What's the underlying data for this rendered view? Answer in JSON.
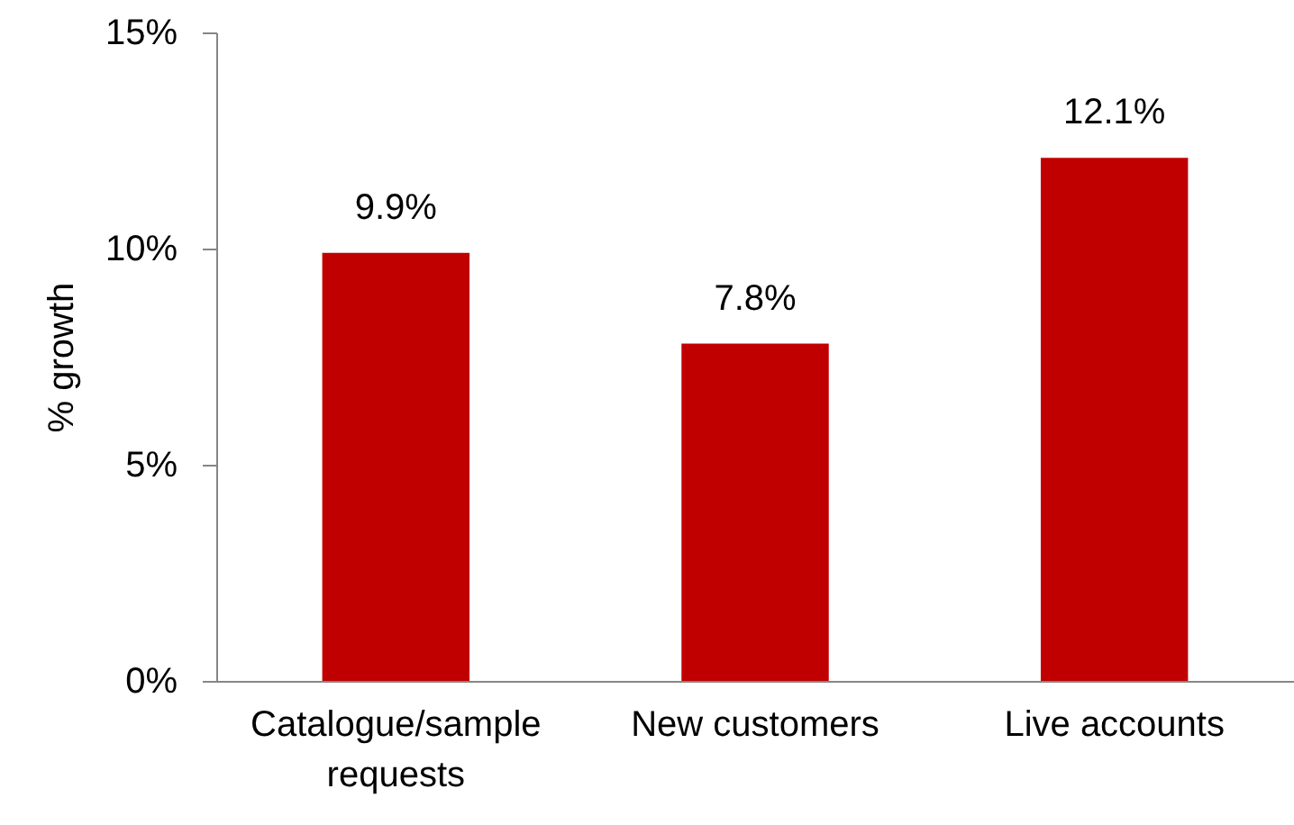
{
  "chart_data": {
    "type": "bar",
    "ylabel": "% growth",
    "categories": [
      "Catalogue/sample requests",
      "New customers",
      "Live accounts"
    ],
    "values": [
      9.9,
      7.8,
      12.1
    ],
    "color": "#c00000",
    "value_labels": [
      "9.9%",
      "7.8%",
      "12.1%"
    ],
    "ylim": [
      0,
      15
    ],
    "yticks": [
      {
        "value": 0,
        "label": "0%"
      },
      {
        "value": 5,
        "label": "5%"
      },
      {
        "value": 10,
        "label": "10%"
      },
      {
        "value": 15,
        "label": "15%"
      }
    ]
  }
}
